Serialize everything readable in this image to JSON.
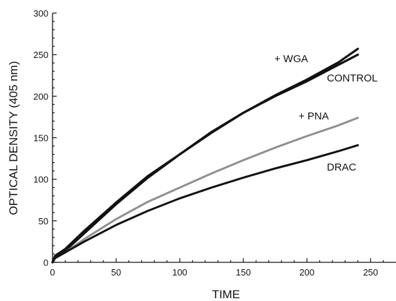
{
  "chart_data": {
    "type": "line",
    "xlabel": "TIME",
    "ylabel": "OPTICAL DENSITY (405 nm)",
    "xlim": [
      0,
      270
    ],
    "ylim": [
      0,
      300
    ],
    "xticks": [
      0,
      50,
      100,
      150,
      200,
      250
    ],
    "yticks": [
      0,
      50,
      100,
      150,
      200,
      250,
      300
    ],
    "x_minor_step": 10,
    "y_minor_step": 10,
    "grid": false,
    "legend": "none (series labeled inline)",
    "series": [
      {
        "name": "+ WGA",
        "color": "#111111",
        "x": [
          0,
          2,
          10,
          25,
          50,
          75,
          100,
          125,
          150,
          175,
          200,
          225,
          240
        ],
        "y": [
          0,
          8,
          16,
          38,
          72,
          104,
          130,
          156,
          180,
          201,
          220,
          241,
          257
        ]
      },
      {
        "name": "CONTROL",
        "color": "#111111",
        "x": [
          0,
          2,
          10,
          25,
          50,
          75,
          100,
          125,
          150,
          175,
          200,
          225,
          240
        ],
        "y": [
          0,
          7,
          14,
          35,
          70,
          102,
          130,
          157,
          180,
          200,
          218,
          238,
          250
        ]
      },
      {
        "name": "+ PNA",
        "color": "#8f8f8f",
        "x": [
          0,
          2,
          10,
          25,
          50,
          75,
          100,
          125,
          150,
          175,
          200,
          225,
          240
        ],
        "y": [
          0,
          5,
          12,
          28,
          52,
          73,
          90,
          107,
          123,
          138,
          152,
          165,
          174
        ]
      },
      {
        "name": "DRAC",
        "color": "#111111",
        "x": [
          0,
          2,
          10,
          25,
          50,
          75,
          100,
          125,
          150,
          175,
          200,
          225,
          240
        ],
        "y": [
          0,
          5,
          12,
          25,
          45,
          62,
          77,
          90,
          102,
          113,
          123,
          134,
          141
        ]
      }
    ],
    "annotations": [
      {
        "text": "+ WGA",
        "series": "+ WGA"
      },
      {
        "text": "CONTROL",
        "series": "CONTROL"
      },
      {
        "text": "+ PNA",
        "series": "+ PNA"
      },
      {
        "text": "DRAC",
        "series": "DRAC"
      }
    ]
  }
}
